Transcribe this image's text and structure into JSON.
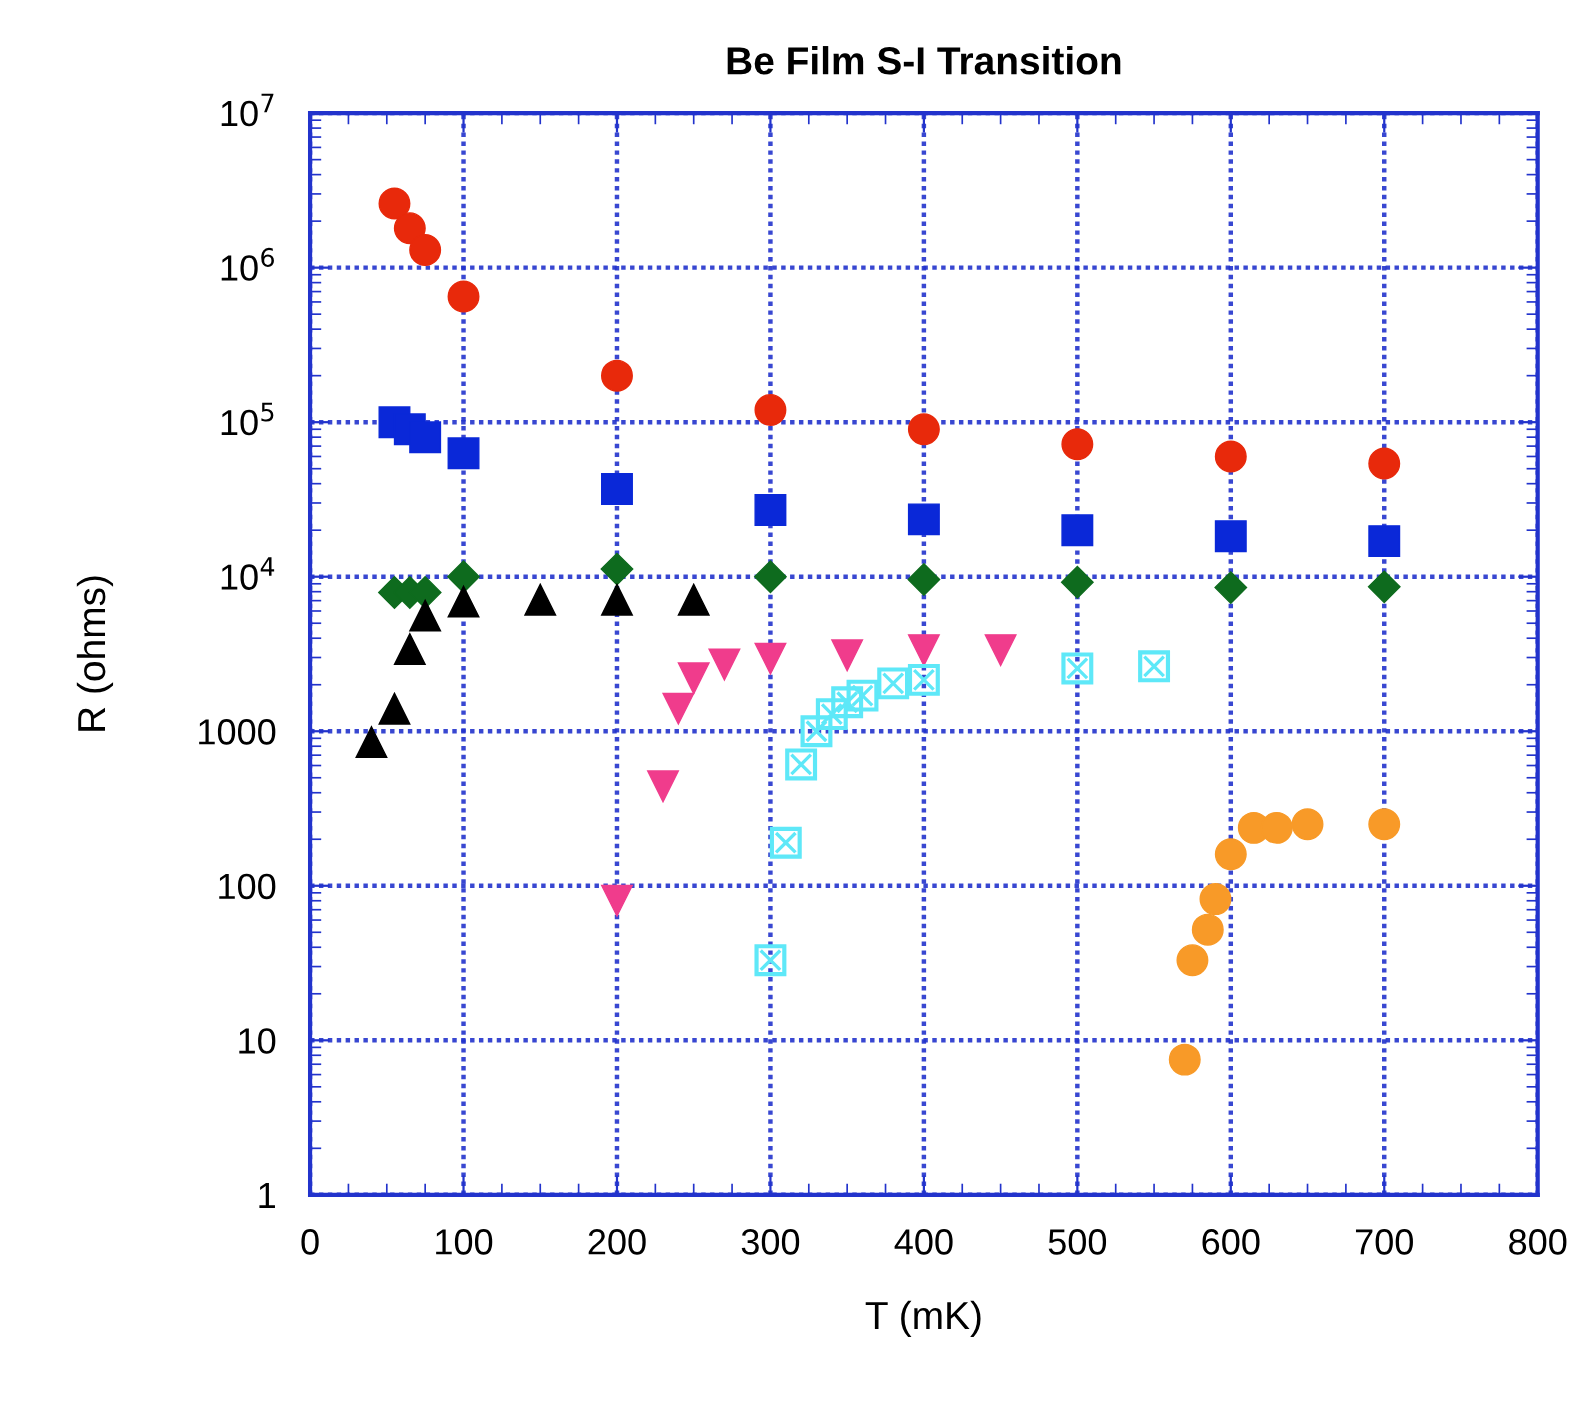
{
  "chart_data": {
    "type": "scatter",
    "title": "Be Film S-I Transition",
    "xlabel": "T (mK)",
    "ylabel": "R (ohms)",
    "log": "y",
    "grid": true,
    "legend": false,
    "xlim": [
      0,
      800
    ],
    "xticks": [
      0,
      100,
      200,
      300,
      400,
      500,
      600,
      700,
      800
    ],
    "ylim": [
      1,
      10000000
    ],
    "yticks": [
      1,
      10,
      100,
      1000,
      {
        "value": 10000,
        "label": "10$^{4}$"
      },
      {
        "value": 100000,
        "label": "10$^{5}$"
      },
      {
        "value": 1000000,
        "label": "10$^{6}$"
      },
      {
        "value": 10000000,
        "label": "10$^{7}$"
      }
    ],
    "series": [
      {
        "color": "#e8290b",
        "marker": "circle",
        "x": [
          55,
          65,
          75,
          100,
          200,
          300,
          400,
          500,
          600,
          700
        ],
        "values": [
          2600000,
          1800000,
          1300000,
          650000,
          200000,
          120000,
          90000,
          72000,
          60000,
          54000
        ]
      },
      {
        "color": "#0a28d8",
        "marker": "square",
        "x": [
          55,
          65,
          75,
          100,
          200,
          300,
          400,
          500,
          600,
          700
        ],
        "values": [
          100000,
          90000,
          80000,
          63000,
          37000,
          27000,
          23500,
          20000,
          18300,
          17000
        ]
      },
      {
        "color": "#0e6b1e",
        "marker": "diamond",
        "x": [
          55,
          65,
          75,
          100,
          200,
          300,
          400,
          500,
          600,
          700
        ],
        "values": [
          7900,
          7900,
          7900,
          10000,
          11200,
          10000,
          9600,
          9200,
          8500,
          8600
        ]
      },
      {
        "color": "#000000",
        "marker": "triangle",
        "x": [
          40,
          55,
          65,
          75,
          100,
          150,
          200,
          250
        ],
        "values": [
          850,
          1400,
          3400,
          5600,
          6900,
          7100,
          7100,
          7100
        ]
      },
      {
        "color": "#f03c8c",
        "marker": "triangle_down",
        "x": [
          200,
          230,
          240,
          250,
          270,
          300,
          350,
          400,
          450
        ],
        "values": [
          80,
          440,
          1400,
          2200,
          2700,
          2950,
          3100,
          3350,
          3350
        ]
      },
      {
        "color": "#5ee8f8",
        "marker": "cross",
        "x": [
          300,
          310,
          320,
          330,
          340,
          350,
          360,
          380,
          400,
          500,
          550
        ],
        "values": [
          33,
          190,
          610,
          1000,
          1290,
          1540,
          1700,
          2040,
          2150,
          2550,
          2630
        ]
      },
      {
        "color": "#f89a28",
        "marker": "circle",
        "x": [
          570,
          575,
          585,
          590,
          600,
          615,
          630,
          650,
          700
        ],
        "values": [
          7.5,
          33,
          52,
          82,
          160,
          237,
          237,
          250,
          250
        ]
      }
    ]
  }
}
